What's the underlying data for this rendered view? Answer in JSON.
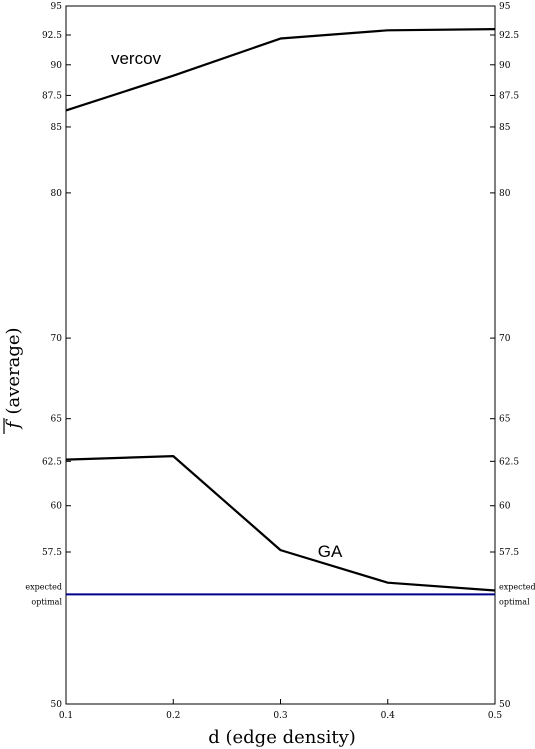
{
  "chart_data": {
    "type": "line",
    "xlabel": "d (edge density)",
    "ylabel": "(average)",
    "ylabel_symbol": "f",
    "xlim": [
      0.1,
      0.5
    ],
    "ylim": [
      50,
      95
    ],
    "y_scale": "log",
    "x_ticks": [
      "0.1",
      "0.2",
      "0.3",
      "0.4",
      "0.5"
    ],
    "x_tick_values": [
      0.1,
      0.2,
      0.3,
      0.4,
      0.5
    ],
    "y_ticks": [
      "50",
      "57.5",
      "60",
      "62.5",
      "65",
      "70",
      "80",
      "85",
      "87.5",
      "90",
      "92.5",
      "95"
    ],
    "y_tick_values": [
      50,
      57.5,
      60,
      62.5,
      65,
      70,
      80,
      85,
      87.5,
      90,
      92.5,
      95
    ],
    "series": [
      {
        "name": "vercov",
        "color": "#000000",
        "x": [
          0.1,
          0.2,
          0.3,
          0.4,
          0.5
        ],
        "values": [
          86.3,
          89.1,
          92.2,
          92.9,
          93.0
        ]
      },
      {
        "name": "GA",
        "color": "#000000",
        "x": [
          0.1,
          0.2,
          0.3,
          0.4,
          0.5
        ],
        "values": [
          62.6,
          62.8,
          57.6,
          55.9,
          55.5
        ]
      }
    ],
    "reference_line": {
      "label_line1": "expected",
      "label_line2": "optimal",
      "value": 55.3,
      "color": "#00008b"
    },
    "grid": false
  }
}
